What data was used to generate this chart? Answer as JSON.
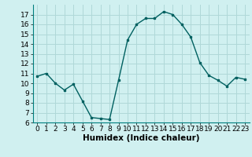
{
  "x": [
    0,
    1,
    2,
    3,
    4,
    5,
    6,
    7,
    8,
    9,
    10,
    11,
    12,
    13,
    14,
    15,
    16,
    17,
    18,
    19,
    20,
    21,
    22,
    23
  ],
  "y": [
    10.7,
    11.0,
    10.0,
    9.3,
    9.9,
    8.2,
    6.5,
    6.4,
    6.3,
    10.3,
    14.4,
    16.0,
    16.6,
    16.6,
    17.3,
    17.0,
    16.0,
    14.7,
    12.1,
    10.8,
    10.3,
    9.7,
    10.6,
    10.4
  ],
  "line_color": "#006060",
  "marker": "s",
  "marker_size": 2.0,
  "bg_color": "#d0f0f0",
  "grid_color": "#b0d8d8",
  "xlabel": "Humidex (Indice chaleur)",
  "ylim": [
    6,
    18
  ],
  "xlim": [
    -0.5,
    23.5
  ],
  "yticks": [
    6,
    7,
    8,
    9,
    10,
    11,
    12,
    13,
    14,
    15,
    16,
    17
  ],
  "xticks": [
    0,
    1,
    2,
    3,
    4,
    5,
    6,
    7,
    8,
    9,
    10,
    11,
    12,
    13,
    14,
    15,
    16,
    17,
    18,
    19,
    20,
    21,
    22,
    23
  ],
  "xlabel_fontsize": 7.5,
  "tick_fontsize": 6.5,
  "line_width": 1.0
}
